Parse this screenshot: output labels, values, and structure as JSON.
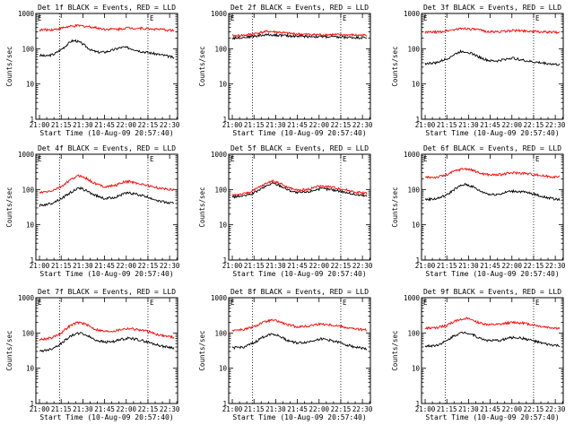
{
  "chart_data": [
    {
      "type": "line",
      "title": "Det 1f BLACK = Events, RED = LLD",
      "xlabel": "Start Time (10-Aug-09 20:57:40)",
      "ylabel": "Counts/sec",
      "x_tick_labels": [
        "21:00",
        "21:15",
        "21:30",
        "21:45",
        "22:00",
        "22:15",
        "22:30"
      ],
      "y_tick_labels": [
        "1",
        "10",
        "100",
        "1000"
      ],
      "y_scale": "log",
      "ylim": [
        1,
        1000
      ],
      "xlim_minutes": [
        -2.5,
        95.5
      ],
      "x_tick_minutes": [
        0,
        15,
        30,
        45,
        60,
        75,
        90
      ],
      "vlines_minutes": [
        14,
        75
      ],
      "markers": [
        "E",
        "E"
      ],
      "series": [
        {
          "name": "BLACK = Events",
          "color": "#000000",
          "x_minutes": [
            0,
            5,
            10,
            15,
            20,
            22,
            25,
            28,
            30,
            33,
            36,
            40,
            45,
            50,
            55,
            58,
            62,
            66,
            70,
            75,
            80,
            85,
            90,
            93
          ],
          "values": [
            65,
            62,
            70,
            95,
            140,
            165,
            170,
            150,
            135,
            110,
            90,
            80,
            80,
            90,
            105,
            110,
            105,
            95,
            85,
            78,
            72,
            66,
            60,
            55
          ]
        },
        {
          "name": "RED = LLD",
          "color": "#ff0000",
          "x_minutes": [
            0,
            10,
            20,
            27,
            35,
            45,
            55,
            60,
            70,
            80,
            93
          ],
          "values": [
            340,
            350,
            420,
            450,
            420,
            360,
            360,
            390,
            380,
            360,
            330
          ]
        }
      ]
    },
    {
      "type": "line",
      "title": "Det 2f BLACK = Events, RED = LLD",
      "xlabel": "Start Time (10-Aug-09 20:57:40)",
      "ylabel": "Counts/sec",
      "x_tick_labels": [
        "21:00",
        "21:15",
        "21:30",
        "21:45",
        "22:00",
        "22:15",
        "22:30"
      ],
      "y_tick_labels": [
        "1",
        "10",
        "100",
        "1000"
      ],
      "y_scale": "log",
      "ylim": [
        1,
        1000
      ],
      "xlim_minutes": [
        -2.5,
        95.5
      ],
      "x_tick_minutes": [
        0,
        15,
        30,
        45,
        60,
        75,
        90
      ],
      "vlines_minutes": [
        14,
        75
      ],
      "markers": [
        "E",
        "E"
      ],
      "series": [
        {
          "name": "BLACK = Events",
          "color": "#000000",
          "x_minutes": [
            0,
            10,
            20,
            25,
            30,
            40,
            50,
            60,
            70,
            80,
            93
          ],
          "values": [
            200,
            215,
            240,
            250,
            245,
            230,
            225,
            220,
            215,
            210,
            205
          ]
        },
        {
          "name": "RED = LLD",
          "color": "#ff0000",
          "x_minutes": [
            0,
            10,
            20,
            25,
            30,
            40,
            50,
            60,
            70,
            80,
            93
          ],
          "values": [
            230,
            245,
            290,
            310,
            300,
            270,
            255,
            250,
            250,
            245,
            240
          ]
        }
      ]
    },
    {
      "type": "line",
      "title": "Det 3f BLACK = Events, RED = LLD",
      "xlabel": "Start Time (10-Aug-09 20:57:40)",
      "ylabel": "Counts/sec",
      "x_tick_labels": [
        "21:00",
        "21:15",
        "21:30",
        "21:45",
        "22:00",
        "22:15",
        "22:30"
      ],
      "y_tick_labels": [
        "1",
        "10",
        "100",
        "1000"
      ],
      "y_scale": "log",
      "ylim": [
        1,
        1000
      ],
      "xlim_minutes": [
        -2.5,
        95.5
      ],
      "x_tick_minutes": [
        0,
        15,
        30,
        45,
        60,
        75,
        90
      ],
      "vlines_minutes": [
        14,
        75
      ],
      "markers": [
        "E",
        "E"
      ],
      "series": [
        {
          "name": "BLACK = Events",
          "color": "#000000",
          "x_minutes": [
            0,
            8,
            15,
            20,
            25,
            30,
            35,
            40,
            45,
            50,
            55,
            60,
            65,
            70,
            75,
            80,
            85,
            93
          ],
          "values": [
            38,
            40,
            52,
            68,
            85,
            80,
            65,
            52,
            45,
            45,
            50,
            55,
            50,
            45,
            42,
            40,
            38,
            35
          ]
        },
        {
          "name": "RED = LLD",
          "color": "#ff0000",
          "x_minutes": [
            0,
            10,
            20,
            27,
            35,
            45,
            55,
            60,
            70,
            80,
            93
          ],
          "values": [
            290,
            300,
            350,
            380,
            350,
            300,
            310,
            330,
            320,
            300,
            290
          ]
        }
      ]
    },
    {
      "type": "line",
      "title": "Det 4f BLACK = Events, RED = LLD",
      "xlabel": "Start Time (10-Aug-09 20:57:40)",
      "ylabel": "Counts/sec",
      "x_tick_labels": [
        "21:00",
        "21:15",
        "21:30",
        "21:45",
        "22:00",
        "22:15",
        "22:30"
      ],
      "y_tick_labels": [
        "1",
        "10",
        "100",
        "1000"
      ],
      "y_scale": "log",
      "ylim": [
        1,
        1000
      ],
      "xlim_minutes": [
        -2.5,
        95.5
      ],
      "x_tick_minutes": [
        0,
        15,
        30,
        45,
        60,
        75,
        90
      ],
      "vlines_minutes": [
        14,
        75
      ],
      "markers": [
        "E",
        "E"
      ],
      "series": [
        {
          "name": "BLACK = Events",
          "color": "#000000",
          "x_minutes": [
            0,
            8,
            15,
            20,
            25,
            28,
            33,
            38,
            45,
            52,
            58,
            62,
            68,
            75,
            80,
            85,
            93
          ],
          "values": [
            35,
            40,
            55,
            75,
            100,
            110,
            90,
            70,
            55,
            60,
            75,
            80,
            72,
            60,
            52,
            45,
            40
          ]
        },
        {
          "name": "RED = LLD",
          "color": "#ff0000",
          "x_minutes": [
            0,
            8,
            15,
            20,
            25,
            28,
            33,
            38,
            45,
            52,
            58,
            62,
            68,
            75,
            80,
            85,
            93
          ],
          "values": [
            80,
            90,
            120,
            170,
            230,
            250,
            200,
            150,
            120,
            130,
            160,
            170,
            150,
            130,
            115,
            105,
            100
          ]
        }
      ]
    },
    {
      "type": "line",
      "title": "Det 5f BLACK = Events, RED = LLD",
      "xlabel": "Start Time (10-Aug-09 20:57:40)",
      "ylabel": "Counts/sec",
      "x_tick_labels": [
        "21:00",
        "21:15",
        "21:30",
        "21:45",
        "22:00",
        "22:15",
        "22:30"
      ],
      "y_tick_labels": [
        "1",
        "10",
        "100",
        "1000"
      ],
      "y_scale": "log",
      "ylim": [
        1,
        1000
      ],
      "xlim_minutes": [
        -2.5,
        95.5
      ],
      "x_tick_minutes": [
        0,
        15,
        30,
        45,
        60,
        75,
        90
      ],
      "vlines_minutes": [
        14,
        75
      ],
      "markers": [
        "E",
        "E"
      ],
      "series": [
        {
          "name": "BLACK = Events",
          "color": "#000000",
          "x_minutes": [
            0,
            8,
            15,
            20,
            25,
            28,
            33,
            38,
            45,
            52,
            58,
            62,
            68,
            75,
            80,
            85,
            93
          ],
          "values": [
            62,
            65,
            80,
            105,
            135,
            150,
            130,
            100,
            80,
            85,
            100,
            105,
            100,
            90,
            80,
            72,
            65
          ]
        },
        {
          "name": "RED = LLD",
          "color": "#ff0000",
          "x_minutes": [
            0,
            8,
            15,
            20,
            25,
            28,
            33,
            38,
            45,
            52,
            58,
            62,
            68,
            75,
            80,
            85,
            93
          ],
          "values": [
            70,
            75,
            95,
            125,
            160,
            175,
            150,
            115,
            95,
            100,
            120,
            125,
            118,
            105,
            95,
            85,
            78
          ]
        }
      ]
    },
    {
      "type": "line",
      "title": "Det 6f BLACK = Events, RED = LLD",
      "xlabel": "Start Time (10-Aug-09 20:57:40)",
      "ylabel": "Counts/sec",
      "x_tick_labels": [
        "21:00",
        "21:15",
        "21:30",
        "21:45",
        "22:00",
        "22:15",
        "22:30"
      ],
      "y_tick_labels": [
        "1",
        "10",
        "100",
        "1000"
      ],
      "y_scale": "log",
      "ylim": [
        1,
        1000
      ],
      "xlim_minutes": [
        -2.5,
        95.5
      ],
      "x_tick_minutes": [
        0,
        15,
        30,
        45,
        60,
        75,
        90
      ],
      "vlines_minutes": [
        14,
        75
      ],
      "markers": [
        "E",
        "E"
      ],
      "series": [
        {
          "name": "BLACK = Events",
          "color": "#000000",
          "x_minutes": [
            0,
            8,
            15,
            20,
            25,
            28,
            33,
            38,
            45,
            52,
            58,
            62,
            68,
            75,
            80,
            85,
            93
          ],
          "values": [
            52,
            55,
            70,
            100,
            130,
            140,
            120,
            90,
            72,
            75,
            88,
            90,
            85,
            75,
            65,
            58,
            52
          ]
        },
        {
          "name": "RED = LLD",
          "color": "#ff0000",
          "x_minutes": [
            0,
            8,
            15,
            20,
            25,
            28,
            33,
            38,
            45,
            52,
            58,
            62,
            68,
            75,
            80,
            85,
            93
          ],
          "values": [
            220,
            225,
            260,
            330,
            380,
            390,
            350,
            290,
            260,
            265,
            290,
            300,
            290,
            270,
            250,
            235,
            225
          ]
        }
      ]
    },
    {
      "type": "line",
      "title": "Det 7f BLACK = Events, RED = LLD",
      "xlabel": "Start Time (10-Aug-09 20:57:40)",
      "ylabel": "Counts/sec",
      "x_tick_labels": [
        "21:00",
        "21:15",
        "21:30",
        "21:45",
        "22:00",
        "22:15",
        "22:30"
      ],
      "y_tick_labels": [
        "1",
        "10",
        "100",
        "1000"
      ],
      "y_scale": "log",
      "ylim": [
        1,
        1000
      ],
      "xlim_minutes": [
        -2.5,
        95.5
      ],
      "x_tick_minutes": [
        0,
        15,
        30,
        45,
        60,
        75,
        90
      ],
      "vlines_minutes": [
        14,
        75
      ],
      "markers": [
        "E",
        "E"
      ],
      "series": [
        {
          "name": "BLACK = Events",
          "color": "#000000",
          "x_minutes": [
            0,
            8,
            15,
            20,
            25,
            28,
            33,
            38,
            45,
            52,
            58,
            62,
            68,
            75,
            80,
            85,
            93
          ],
          "values": [
            30,
            35,
            50,
            75,
            95,
            100,
            85,
            65,
            55,
            58,
            68,
            72,
            65,
            55,
            48,
            42,
            38
          ]
        },
        {
          "name": "RED = LLD",
          "color": "#ff0000",
          "x_minutes": [
            0,
            8,
            15,
            20,
            25,
            28,
            33,
            38,
            45,
            52,
            58,
            62,
            68,
            75,
            80,
            85,
            93
          ],
          "values": [
            65,
            72,
            100,
            150,
            190,
            200,
            170,
            130,
            110,
            115,
            130,
            135,
            125,
            110,
            95,
            85,
            75
          ]
        }
      ]
    },
    {
      "type": "line",
      "title": "Det 8f BLACK = Events, RED = LLD",
      "xlabel": "Start Time (10-Aug-09 20:57:40)",
      "ylabel": "Counts/sec",
      "x_tick_labels": [
        "21:00",
        "21:15",
        "21:30",
        "21:45",
        "22:00",
        "22:15",
        "22:30"
      ],
      "y_tick_labels": [
        "1",
        "10",
        "100",
        "1000"
      ],
      "y_scale": "log",
      "ylim": [
        1,
        1000
      ],
      "xlim_minutes": [
        -2.5,
        95.5
      ],
      "x_tick_minutes": [
        0,
        15,
        30,
        45,
        60,
        75,
        90
      ],
      "vlines_minutes": [
        14,
        75
      ],
      "markers": [
        "E",
        "E"
      ],
      "series": [
        {
          "name": "BLACK = Events",
          "color": "#000000",
          "x_minutes": [
            0,
            8,
            15,
            20,
            25,
            28,
            33,
            38,
            45,
            52,
            58,
            62,
            68,
            75,
            80,
            85,
            93
          ],
          "values": [
            38,
            40,
            52,
            72,
            90,
            95,
            80,
            62,
            52,
            55,
            65,
            68,
            62,
            52,
            45,
            40,
            35
          ]
        },
        {
          "name": "RED = LLD",
          "color": "#ff0000",
          "x_minutes": [
            0,
            8,
            15,
            20,
            25,
            28,
            33,
            38,
            45,
            52,
            58,
            62,
            68,
            75,
            80,
            85,
            93
          ],
          "values": [
            120,
            125,
            150,
            190,
            220,
            230,
            205,
            170,
            150,
            155,
            175,
            180,
            170,
            155,
            140,
            130,
            120
          ]
        }
      ]
    },
    {
      "type": "line",
      "title": "Det 9f BLACK = Events, RED = LLD",
      "xlabel": "Start Time (10-Aug-09 20:57:40)",
      "ylabel": "Counts/sec",
      "x_tick_labels": [
        "21:00",
        "21:15",
        "21:30",
        "21:45",
        "22:00",
        "22:15",
        "22:30"
      ],
      "y_tick_labels": [
        "1",
        "10",
        "100",
        "1000"
      ],
      "y_scale": "log",
      "ylim": [
        1,
        1000
      ],
      "xlim_minutes": [
        -2.5,
        95.5
      ],
      "x_tick_minutes": [
        0,
        15,
        30,
        45,
        60,
        75,
        90
      ],
      "vlines_minutes": [
        14,
        75
      ],
      "markers": [
        "E",
        "E"
      ],
      "series": [
        {
          "name": "BLACK = Events",
          "color": "#000000",
          "x_minutes": [
            0,
            8,
            15,
            20,
            25,
            28,
            33,
            38,
            45,
            52,
            58,
            62,
            68,
            75,
            80,
            85,
            93
          ],
          "values": [
            42,
            45,
            60,
            85,
            100,
            105,
            90,
            70,
            60,
            62,
            72,
            75,
            70,
            60,
            52,
            47,
            43
          ]
        },
        {
          "name": "RED = LLD",
          "color": "#ff0000",
          "x_minutes": [
            0,
            8,
            15,
            20,
            25,
            28,
            33,
            38,
            45,
            52,
            58,
            62,
            68,
            75,
            80,
            85,
            93
          ],
          "values": [
            135,
            140,
            165,
            210,
            250,
            260,
            230,
            190,
            170,
            175,
            195,
            200,
            190,
            170,
            155,
            145,
            135
          ]
        }
      ]
    }
  ]
}
